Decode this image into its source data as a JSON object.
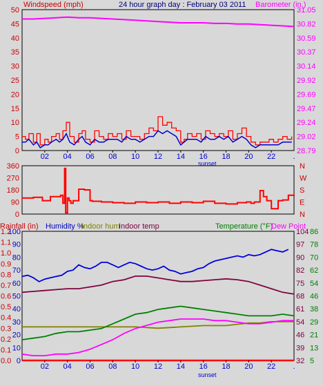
{
  "header": {
    "wind_label": "Windspeed (mph)",
    "title": "24 hour graph day : February 03 2011",
    "baro_label": "Barometer (in.)"
  },
  "x_ticks": [
    "02",
    "04",
    "06",
    "08",
    "10",
    "12",
    "14",
    "16",
    "18",
    "20",
    "22"
  ],
  "sunset_label": "sunset",
  "bottom_headers": {
    "rainfall": "Rainfall (in)",
    "humidity": "Humidity %",
    "indoor_hum": "Indoor hum",
    "indoor_temp": "Indoor temp",
    "temperature": "Temperature (°F)",
    "dew_point": "Dew Point"
  },
  "colors": {
    "wind": "#ff0000",
    "gust": "#ff0000",
    "avg_wind": "#0000cc",
    "barometer": "#ff00ff",
    "direction": "#ff0000",
    "humidity": "#0000dd",
    "indoor_hum": "#808000",
    "indoor_temp": "#800040",
    "temperature": "#008000",
    "dew_point": "#ff00ff",
    "rain": "#ff0000",
    "label_red": "#cc0000",
    "label_blue": "#0000cc",
    "label_green": "#008000",
    "label_magenta": "#ff00ff",
    "label_olive": "#808000",
    "label_maroon": "#800040"
  },
  "chart_data": [
    {
      "type": "line",
      "title": "24 hour graph day : February 03 2011",
      "xlabel": "sunset",
      "x_ticks": [
        "02",
        "04",
        "06",
        "08",
        "10",
        "12",
        "14",
        "16",
        "18",
        "20",
        "22"
      ],
      "left_axis": {
        "label": "Windspeed (mph)",
        "ylim": [
          0,
          50
        ],
        "ticks": [
          "0",
          "5",
          "10",
          "15",
          "20",
          "25",
          "30",
          "35",
          "40",
          "45",
          "50"
        ]
      },
      "right_axis": {
        "label": "Barometer (in.)",
        "ylim": [
          28.79,
          31.05
        ],
        "ticks": [
          "28.79",
          "29.02",
          "29.24",
          "29.47",
          "29.69",
          "29.92",
          "30.14",
          "30.37",
          "30.59",
          "30.82",
          "31.05"
        ]
      },
      "series": [
        {
          "axis": "left",
          "color": "#ff0000",
          "x": [
            0.0,
            0.3,
            0.6,
            1.0,
            1.3,
            1.6,
            2.0,
            2.3,
            2.6,
            3.0,
            3.3,
            3.6,
            3.9,
            4.2,
            4.6,
            5.0,
            5.3,
            5.6,
            6.0,
            6.4,
            6.8,
            7.2,
            7.6,
            8.0,
            8.4,
            8.8,
            9.2,
            9.6,
            10.0,
            10.4,
            10.8,
            11.2,
            11.6,
            12.0,
            12.4,
            12.8,
            13.2,
            13.6,
            14.0,
            14.3,
            14.6,
            15.0,
            15.4,
            15.8,
            16.2,
            16.6,
            17.0,
            17.4,
            17.8,
            18.2,
            18.6,
            19.0,
            19.4,
            19.8,
            20.2,
            20.6,
            21.0,
            21.4,
            21.8,
            22.2,
            22.6,
            23.0,
            23.4,
            23.8
          ],
          "y": [
            5,
            4,
            6,
            3,
            6,
            2,
            4,
            3,
            5,
            6,
            4,
            7,
            10,
            5,
            3,
            6,
            7,
            4,
            3,
            7,
            5,
            4,
            6,
            5,
            6,
            4,
            7,
            5,
            5,
            4,
            6,
            8,
            7,
            12,
            9,
            10,
            8,
            7,
            3,
            4,
            6,
            5,
            6,
            4,
            7,
            6,
            5,
            6,
            5,
            7,
            4,
            6,
            8,
            5,
            3,
            2,
            3,
            3,
            4,
            3,
            4,
            5,
            4,
            5
          ]
        },
        {
          "axis": "left",
          "color": "#0000cc",
          "x": [
            0.0,
            0.3,
            0.6,
            1.0,
            1.3,
            1.6,
            2.0,
            2.3,
            2.6,
            3.0,
            3.3,
            3.6,
            3.9,
            4.2,
            4.6,
            5.0,
            5.3,
            5.6,
            6.0,
            6.4,
            6.8,
            7.2,
            7.6,
            8.0,
            8.4,
            8.8,
            9.2,
            9.6,
            10.0,
            10.4,
            10.8,
            11.2,
            11.6,
            12.0,
            12.4,
            12.8,
            13.2,
            13.6,
            14.0,
            14.3,
            14.6,
            15.0,
            15.4,
            15.8,
            16.2,
            16.6,
            17.0,
            17.4,
            17.8,
            18.2,
            18.6,
            19.0,
            19.4,
            19.8,
            20.2,
            20.6,
            21.0,
            21.4,
            21.8,
            22.2,
            22.6,
            23.0,
            23.4,
            23.8
          ],
          "y": [
            3,
            3,
            4,
            2,
            3,
            1,
            2,
            2,
            3,
            4,
            3,
            4,
            6,
            3,
            2,
            4,
            5,
            3,
            2,
            4,
            3,
            3,
            4,
            4,
            4,
            3,
            5,
            4,
            4,
            3,
            4,
            5,
            5,
            7,
            6,
            7,
            6,
            5,
            2,
            3,
            4,
            4,
            4,
            3,
            5,
            4,
            4,
            5,
            4,
            5,
            3,
            4,
            5,
            4,
            2,
            1,
            2,
            2,
            2,
            2,
            2,
            3,
            3,
            3
          ]
        },
        {
          "axis": "right",
          "color": "#ff00ff",
          "x": [
            0,
            1,
            2,
            3,
            4,
            5,
            6,
            7,
            8,
            9,
            10,
            11,
            12,
            13,
            14,
            15,
            16,
            17,
            18,
            19,
            20,
            21,
            22,
            23,
            24
          ],
          "y": [
            30.9,
            30.9,
            30.91,
            30.92,
            30.93,
            30.92,
            30.92,
            30.91,
            30.9,
            30.89,
            30.88,
            30.87,
            30.86,
            30.85,
            30.84,
            30.84,
            30.84,
            30.83,
            30.83,
            30.82,
            30.82,
            30.81,
            30.8,
            30.79,
            30.78
          ]
        }
      ]
    },
    {
      "type": "line",
      "xlabel": "",
      "x_ticks": [
        "02",
        "04",
        "06",
        "08",
        "10",
        "12",
        "14",
        "16",
        "18",
        "20",
        "22"
      ],
      "left_axis": {
        "label": "",
        "ylim": [
          0,
          360
        ],
        "ticks": [
          "0",
          "90",
          "180",
          "270",
          "360"
        ]
      },
      "right_axis": {
        "label": "",
        "ticks": [
          "N",
          "E",
          "S",
          "W",
          "N"
        ]
      },
      "series": [
        {
          "axis": "left",
          "color": "#ff0000",
          "x": [
            0,
            1,
            1.8,
            2.2,
            2.5,
            3.4,
            3.6,
            3.75,
            3.85,
            4.0,
            4.15,
            4.3,
            4.5,
            5.0,
            5.5,
            5.8,
            6.0,
            6.2,
            7.0,
            8.0,
            9.0,
            10.0,
            11.0,
            12.0,
            13.0,
            14.0,
            15.0,
            16.0,
            17.0,
            18.0,
            19.0,
            19.8,
            20.2,
            20.5,
            21.0,
            21.3,
            21.6,
            22.0,
            22.3,
            22.6,
            23.0,
            23.5,
            24
          ],
          "y": [
            120,
            125,
            100,
            100,
            130,
            140,
            80,
            340,
            10,
            120,
            100,
            80,
            100,
            185,
            180,
            180,
            100,
            95,
            90,
            85,
            80,
            90,
            85,
            90,
            80,
            90,
            85,
            95,
            80,
            75,
            85,
            90,
            80,
            90,
            175,
            130,
            100,
            40,
            40,
            100,
            105,
            140,
            135
          ]
        }
      ]
    },
    {
      "type": "line",
      "xlabel": "sunset",
      "x_ticks": [
        "02",
        "04",
        "06",
        "08",
        "10",
        "12",
        "14",
        "16",
        "18",
        "20",
        "22"
      ],
      "axes": {
        "rainfall": {
          "label": "Rainfall (in)",
          "ylim": [
            0,
            1.2
          ],
          "ticks": [
            "0.0",
            "0.1",
            "0.2",
            "0.3",
            "0.4",
            "0.5",
            "0.6",
            "0.7",
            "0.8",
            "0.9",
            "1.0",
            "1.1",
            "1.2"
          ]
        },
        "humidity": {
          "label": "Humidity %",
          "ylim": [
            0,
            100
          ],
          "ticks": [
            "0",
            "10",
            "20",
            "30",
            "40",
            "50",
            "60",
            "70",
            "80",
            "90",
            "100"
          ]
        },
        "indoor": {
          "ylim": [
            32,
            104
          ],
          "ticks": [
            "32",
            "39",
            "46",
            "54",
            "61",
            "68",
            "75",
            "82",
            "90",
            "97",
            "104"
          ]
        },
        "temperature": {
          "label": "Temperature (°F)",
          "ylim": [
            5,
            86
          ],
          "ticks": [
            "5",
            "13",
            "21",
            "29",
            "38",
            "46",
            "54",
            "62",
            "70",
            "78",
            "86"
          ]
        }
      },
      "series": [
        {
          "name": "Humidity %",
          "axis": "humidity",
          "color": "#0000dd",
          "x": [
            0.0,
            0.5,
            1.0,
            1.5,
            2.0,
            2.5,
            3.0,
            3.5,
            4.0,
            4.5,
            5.0,
            5.5,
            6.0,
            6.5,
            7.0,
            7.5,
            8.0,
            8.5,
            9.0,
            9.5,
            10.0,
            10.5,
            11.0,
            11.5,
            12.0,
            12.5,
            13.0,
            13.5,
            14.0,
            14.5,
            15.0,
            15.5,
            16.0,
            16.5,
            17.0,
            17.5,
            18.0,
            18.5,
            19.0,
            19.5,
            20.0,
            20.5,
            21.0,
            21.5,
            22.0,
            22.5,
            23.0,
            23.5
          ],
          "y": [
            65,
            66,
            64,
            61,
            63,
            64,
            65,
            66,
            69,
            70,
            74,
            72,
            71,
            73,
            76,
            76,
            74,
            72,
            74,
            76,
            75,
            73,
            71,
            70,
            71,
            73,
            70,
            69,
            67,
            68,
            69,
            71,
            72,
            75,
            77,
            78,
            79,
            80,
            81,
            80,
            82,
            81,
            82,
            84,
            86,
            85,
            84,
            86
          ]
        },
        {
          "name": "Indoor hum",
          "axis": "humidity",
          "color": "#808000",
          "x": [
            0,
            4,
            8,
            10,
            12,
            14,
            16,
            18,
            19,
            20,
            21,
            22,
            23,
            24
          ],
          "y": [
            26,
            26,
            26,
            26,
            25,
            26,
            27,
            27,
            28,
            29,
            29,
            30,
            30,
            30
          ]
        },
        {
          "name": "Indoor temp",
          "axis": "indoor",
          "color": "#800040",
          "x": [
            0,
            1,
            2,
            3,
            4,
            5,
            6,
            7,
            8,
            9,
            10,
            11,
            12,
            13,
            14,
            15,
            16,
            17,
            18,
            19,
            20,
            21,
            22,
            23,
            24
          ],
          "y": [
            70,
            70.5,
            71,
            71.5,
            72,
            72,
            73,
            74,
            76,
            77,
            79,
            79,
            78,
            77,
            76,
            76,
            76.5,
            77,
            77.5,
            77,
            76,
            74,
            72,
            70,
            69
          ]
        },
        {
          "name": "Temperature (°F)",
          "axis": "temperature",
          "color": "#008000",
          "x": [
            0,
            1,
            2,
            3,
            4,
            5,
            6,
            7,
            8,
            9,
            10,
            11,
            12,
            13,
            14,
            15,
            16,
            17,
            18,
            19,
            20,
            21,
            22,
            23,
            24
          ],
          "y": [
            18,
            19,
            20,
            22,
            23,
            23,
            24,
            25,
            28,
            31,
            34,
            35,
            37,
            38,
            39,
            38,
            37,
            36,
            35,
            34,
            33,
            33,
            33,
            34,
            33
          ]
        },
        {
          "name": "Dew Point",
          "axis": "temperature",
          "color": "#ff00ff",
          "x": [
            0,
            1,
            2,
            3,
            4,
            5,
            6,
            7,
            8,
            9,
            10,
            11,
            12,
            13,
            14,
            15,
            16,
            17,
            18,
            19,
            20,
            21,
            22,
            23,
            24
          ],
          "y": [
            9,
            8,
            8,
            9,
            9,
            10,
            12,
            15,
            18,
            22,
            25,
            27,
            29,
            30,
            31,
            31,
            31,
            30,
            30,
            29,
            28,
            28,
            29,
            30,
            30
          ]
        },
        {
          "name": "Rainfall (in)",
          "axis": "rainfall",
          "color": "#ff0000",
          "x": [
            0,
            24
          ],
          "y": [
            0,
            0
          ]
        }
      ]
    }
  ]
}
